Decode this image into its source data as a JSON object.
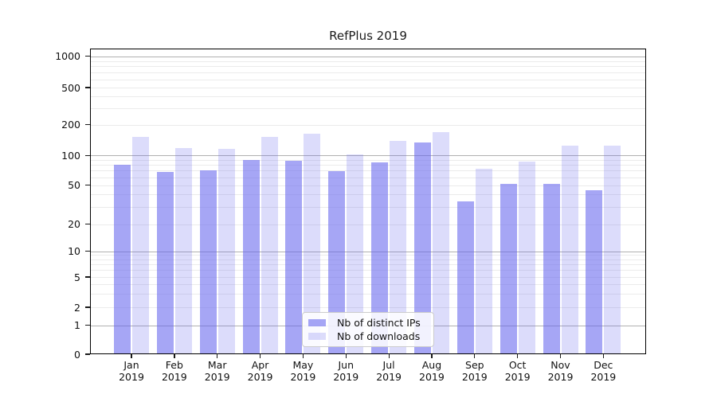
{
  "title": "RefPlus 2019",
  "chart_data": {
    "type": "bar",
    "title": "RefPlus 2019",
    "categories": [
      "Jan 2019",
      "Feb 2019",
      "Mar 2019",
      "Apr 2019",
      "May 2019",
      "Jun 2019",
      "Jul 2019",
      "Aug 2019",
      "Sep 2019",
      "Oct 2019",
      "Nov 2019",
      "Dec 2019"
    ],
    "series": [
      {
        "name": "Nb of distinct IPs",
        "color": "#6666ee",
        "alpha": 0.58,
        "values": [
          80,
          68,
          70,
          90,
          89,
          69,
          85,
          133,
          34,
          51,
          51,
          44
        ]
      },
      {
        "name": "Nb of downloads",
        "color": "#6666ee",
        "alpha": 0.23,
        "values": [
          153,
          118,
          116,
          153,
          164,
          102,
          138,
          170,
          73,
          86,
          124,
          125
        ]
      }
    ],
    "xlabel": "",
    "ylabel": "",
    "y_scale": "log-like with 0 baseline",
    "y_ticks": [
      0,
      1,
      2,
      5,
      10,
      20,
      50,
      100,
      200,
      500,
      1000
    ],
    "ylim": [
      0,
      1000
    ],
    "grid": true,
    "legend_position": "lower center"
  },
  "colors": {
    "grid_major": "#b0b0b0",
    "grid_minor": "#ebebeb",
    "axis_frame": "#000000",
    "background": "#ffffff",
    "text": "#1a1a1a"
  }
}
